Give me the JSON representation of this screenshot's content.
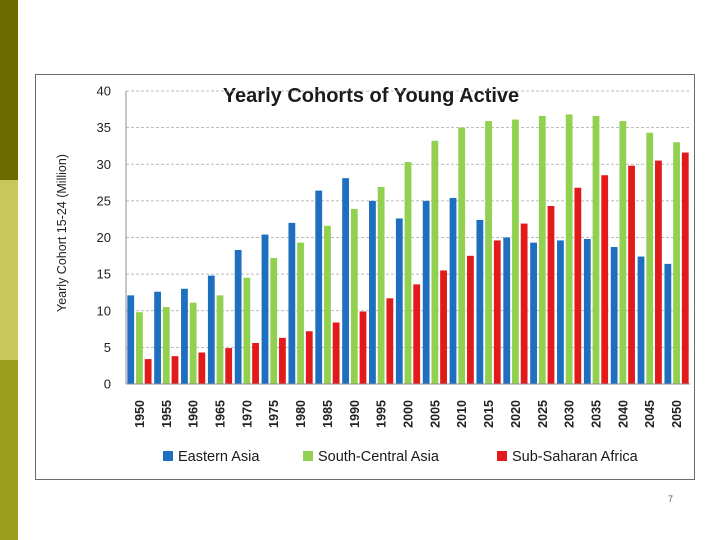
{
  "slide": {
    "page_number": "7",
    "band_colors": [
      "#6b6b00",
      "#c8c85a",
      "#9c9c1e"
    ]
  },
  "chart_data": {
    "type": "bar",
    "title": "Yearly Cohorts of Young  Active",
    "xlabel": "",
    "ylabel": "Yearly Cohort 15-24 (Million)",
    "ylim": [
      0,
      40
    ],
    "yticks": [
      0,
      5,
      10,
      15,
      20,
      25,
      30,
      35,
      40
    ],
    "grid": true,
    "legend_position": "bottom",
    "categories": [
      "1950",
      "1955",
      "1960",
      "1965",
      "1970",
      "1975",
      "1980",
      "1985",
      "1990",
      "1995",
      "2000",
      "2005",
      "2010",
      "2015",
      "2020",
      "2025",
      "2030",
      "2035",
      "2040",
      "2045",
      "2050"
    ],
    "series": [
      {
        "name": "Eastern Asia",
        "color": "#1f6fc1",
        "values": [
          12.1,
          12.6,
          13.0,
          14.8,
          18.3,
          20.4,
          22.0,
          26.4,
          28.1,
          25.0,
          22.6,
          25.0,
          25.4,
          22.4,
          20.0,
          19.3,
          19.6,
          19.8,
          18.7,
          17.4,
          16.4
        ]
      },
      {
        "name": "South-Central Asia",
        "color": "#92d050",
        "values": [
          9.8,
          10.5,
          11.1,
          12.1,
          14.5,
          17.2,
          19.3,
          21.6,
          23.9,
          26.9,
          30.3,
          33.2,
          35.0,
          35.9,
          36.1,
          36.6,
          36.8,
          36.6,
          35.9,
          34.3,
          33.0
        ]
      },
      {
        "name": "Sub-Saharan Africa",
        "color": "#e31a1c",
        "values": [
          3.4,
          3.8,
          4.3,
          4.9,
          5.6,
          6.3,
          7.2,
          8.4,
          9.9,
          11.7,
          13.6,
          15.5,
          17.5,
          19.6,
          21.9,
          24.3,
          26.8,
          28.5,
          29.8,
          30.5,
          31.6
        ]
      }
    ]
  }
}
